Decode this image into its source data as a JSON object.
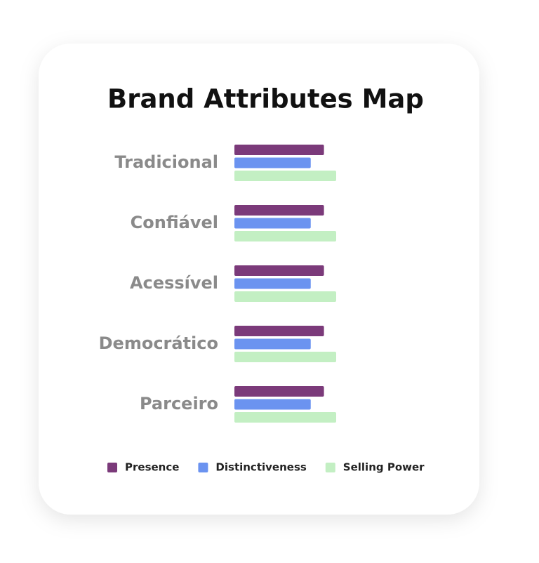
{
  "chart_data": {
    "type": "bar",
    "orientation": "horizontal",
    "title": "Brand Attributes Map",
    "categories": [
      "Tradicional",
      "Confiável",
      "Acessível",
      "Democrático",
      "Parceiro"
    ],
    "series": [
      {
        "name": "Presence",
        "color": "#7b3a7a",
        "values": [
          88,
          88,
          88,
          88,
          88
        ]
      },
      {
        "name": "Distinctiveness",
        "color": "#6b93f0",
        "values": [
          75,
          75,
          75,
          75,
          75
        ]
      },
      {
        "name": "Selling Power",
        "color": "#c3efc3",
        "values": [
          100,
          100,
          100,
          100,
          100
        ]
      }
    ],
    "legend": "bottom"
  }
}
